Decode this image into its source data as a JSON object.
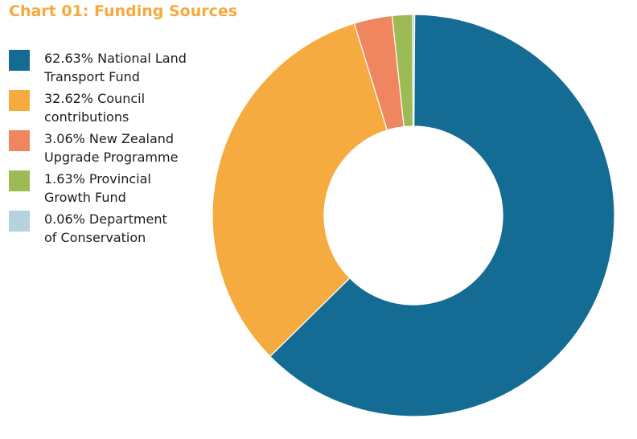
{
  "chart_data": {
    "type": "pie",
    "title": "Chart 01: Funding Sources",
    "donut": true,
    "legend_position": "left",
    "slices": [
      {
        "label_lines": [
          "62.63% National Land",
          "Transport Fund"
        ],
        "value": 62.63,
        "color": "#146c94"
      },
      {
        "label_lines": [
          "32.62% Council",
          "contributions"
        ],
        "value": 32.62,
        "color": "#f6ab41"
      },
      {
        "label_lines": [
          "3.06% New Zealand",
          "Upgrade Programme"
        ],
        "value": 3.06,
        "color": "#f08660"
      },
      {
        "label_lines": [
          "1.63% Provincial",
          "Growth Fund"
        ],
        "value": 1.63,
        "color": "#9dbb55"
      },
      {
        "label_lines": [
          "0.06% Department",
          "of Conservation"
        ],
        "value": 0.06,
        "color": "#b5d3dd"
      }
    ]
  }
}
